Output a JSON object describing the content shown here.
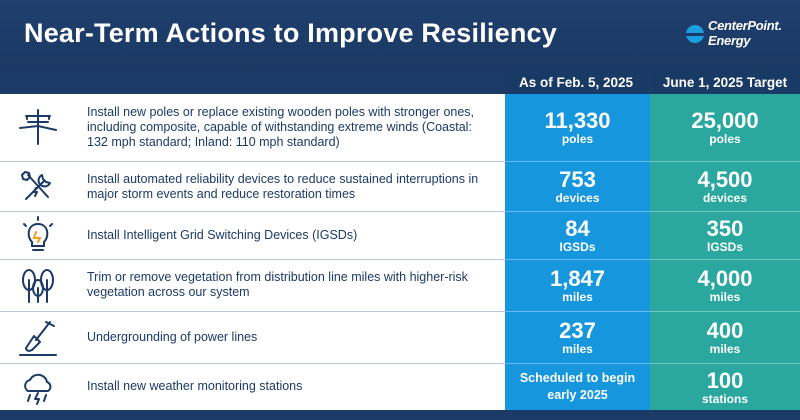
{
  "title": "Near-Term Actions to Improve Resiliency",
  "logo": {
    "line1": "CenterPoint.",
    "line2": "Energy"
  },
  "columns": {
    "current": "As of Feb. 5, 2025",
    "target": "June 1, 2025 Target"
  },
  "colors": {
    "navy": "#1c3a66",
    "current_col": "#1596dd",
    "target_col": "#2aa8a0"
  },
  "rows": [
    {
      "icon": "utility-pole-icon",
      "description": "Install new poles or replace existing wooden poles with stronger ones, including composite, capable of withstanding extreme winds (Coastal: 132 mph standard; Inland: 110 mph standard)",
      "current_value": "11,330",
      "current_unit": "poles",
      "target_value": "25,000",
      "target_unit": "poles"
    },
    {
      "icon": "tools-icon",
      "description": "Install automated reliability devices to reduce sustained interruptions in major storm events and reduce restoration times",
      "current_value": "753",
      "current_unit": "devices",
      "target_value": "4,500",
      "target_unit": "devices"
    },
    {
      "icon": "lightbulb-icon",
      "description": "Install Intelligent Grid Switching Devices (IGSDs)",
      "current_value": "84",
      "current_unit": "IGSDs",
      "target_value": "350",
      "target_unit": "IGSDs"
    },
    {
      "icon": "trees-icon",
      "description": "Trim or remove vegetation from distribution line miles with higher-risk vegetation across our system",
      "current_value": "1,847",
      "current_unit": "miles",
      "target_value": "4,000",
      "target_unit": "miles"
    },
    {
      "icon": "shovel-icon",
      "description": "Undergrounding of power lines",
      "current_value": "237",
      "current_unit": "miles",
      "target_value": "400",
      "target_unit": "miles"
    },
    {
      "icon": "storm-cloud-icon",
      "description": "Install new weather monitoring stations",
      "current_text_line1": "Scheduled to begin",
      "current_text_line2": "early 2025",
      "target_value": "100",
      "target_unit": "stations"
    }
  ]
}
